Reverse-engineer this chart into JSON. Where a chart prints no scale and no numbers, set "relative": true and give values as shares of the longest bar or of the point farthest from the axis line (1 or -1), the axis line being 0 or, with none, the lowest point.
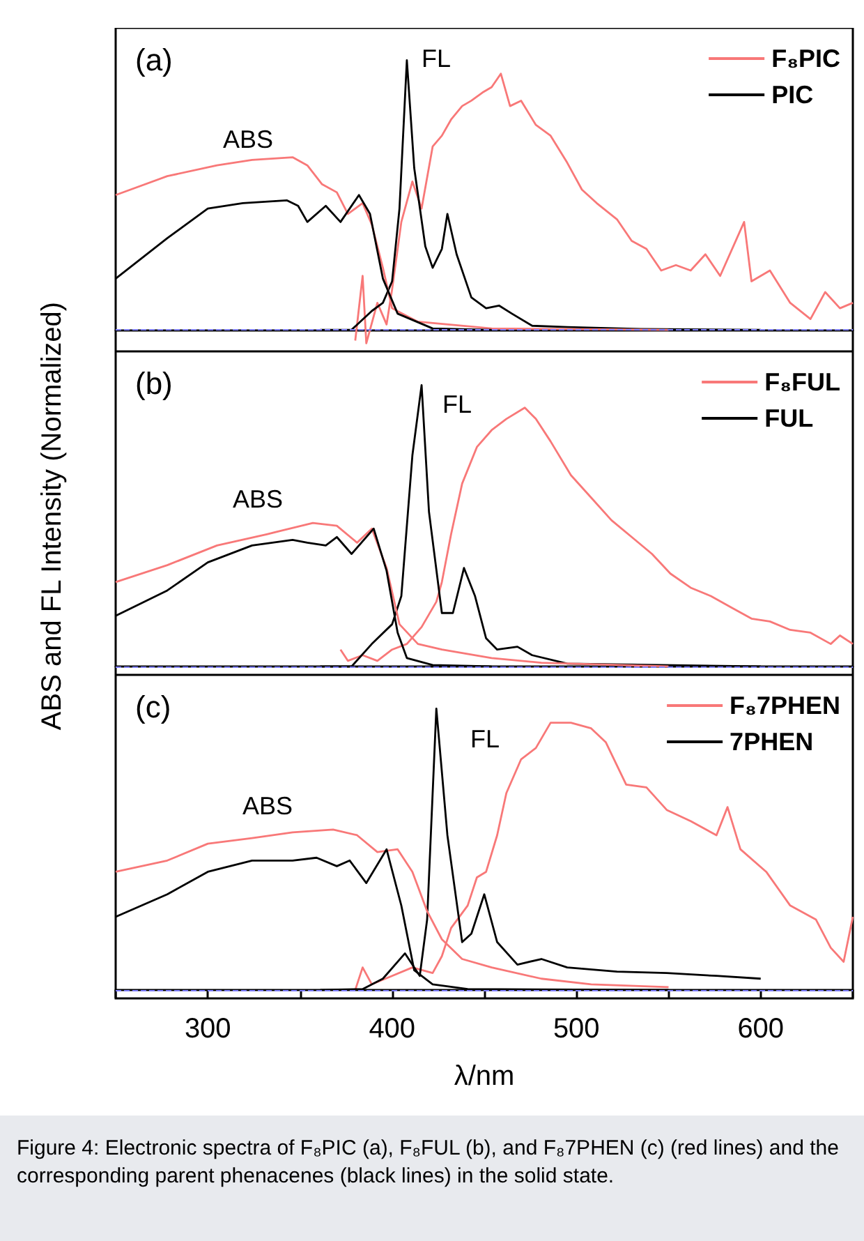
{
  "chart_data": [
    {
      "type": "line",
      "relative": true,
      "tick_labels": false,
      "xlim": [
        250,
        650
      ],
      "legend": "top right",
      "grid": false,
      "annotations": [
        "(a)",
        "ABS",
        "FL"
      ],
      "ref_lines": [
        {
          "axis": "y",
          "value": 0,
          "color": "#8080ff",
          "line_style": "dashed"
        }
      ],
      "series": [
        {
          "name": "F₈PIC",
          "color": "#f87878",
          "x": [
            380,
            384,
            386,
            392,
            397,
            400,
            405,
            411,
            416,
            422,
            427,
            432,
            438,
            443,
            449,
            454,
            459,
            464,
            470,
            478,
            486,
            495,
            503,
            511,
            522,
            530,
            538,
            546,
            554,
            562,
            570,
            578,
            591,
            595,
            605,
            616,
            627,
            635,
            643,
            650
          ],
          "values": [
            -0.04,
            0.2,
            -0.05,
            0.1,
            0.02,
            0.15,
            0.4,
            0.55,
            0.45,
            0.68,
            0.72,
            0.78,
            0.83,
            0.85,
            0.88,
            0.9,
            0.95,
            0.83,
            0.85,
            0.76,
            0.72,
            0.62,
            0.52,
            0.47,
            0.41,
            0.33,
            0.3,
            0.22,
            0.24,
            0.22,
            0.28,
            0.2,
            0.4,
            0.18,
            0.22,
            0.1,
            0.04,
            0.14,
            0.08,
            0.1
          ]
        },
        {
          "name": "PIC",
          "color": "#000000",
          "x": [
            361,
            378,
            389,
            395,
            400,
            404,
            408,
            412,
            418,
            422,
            427,
            430,
            435,
            443,
            451,
            458,
            465,
            476,
            495,
            535,
            600
          ],
          "values": [
            0,
            0,
            0.07,
            0.1,
            0.18,
            0.45,
            1,
            0.6,
            0.31,
            0.23,
            0.3,
            0.43,
            0.28,
            0.12,
            0.08,
            0.09,
            0.06,
            0.015,
            0.01,
            0.003,
            0
          ]
        },
        {
          "color": "#f87878",
          "x": [
            250,
            278,
            305,
            324,
            346,
            354,
            362,
            370,
            376,
            384,
            389,
            395,
            400,
            414,
            454,
            550
          ],
          "values": [
            0.5,
            0.57,
            0.61,
            0.63,
            0.64,
            0.61,
            0.54,
            0.51,
            0.43,
            0.47,
            0.39,
            0.23,
            0.08,
            0.03,
            0.005,
            0
          ]
        },
        {
          "color": "#000000",
          "x": [
            250,
            278,
            300,
            319,
            343,
            349,
            354,
            364,
            372,
            382,
            388,
            395,
            403,
            422,
            454
          ],
          "values": [
            0.19,
            0.34,
            0.45,
            0.47,
            0.48,
            0.46,
            0.4,
            0.46,
            0.4,
            0.5,
            0.43,
            0.19,
            0.06,
            0.005,
            0
          ]
        }
      ]
    },
    {
      "type": "line",
      "relative": true,
      "tick_labels": false,
      "xlim": [
        250,
        650
      ],
      "legend": "top right",
      "grid": false,
      "ylabel": "ABS and FL Intensity (Normalized)",
      "annotations": [
        "(b)",
        "ABS",
        "FL"
      ],
      "ref_lines": [
        {
          "axis": "y",
          "value": 0,
          "color": "#8080ff",
          "line_style": "dashed"
        }
      ],
      "series": [
        {
          "name": "F₈FUL",
          "color": "#f87878",
          "x": [
            372,
            376,
            384,
            392,
            400,
            408,
            416,
            424,
            427,
            432,
            438,
            446,
            454,
            462,
            472,
            478,
            486,
            497,
            508,
            519,
            530,
            541,
            551,
            562,
            573,
            584,
            595,
            605,
            616,
            627,
            638,
            643,
            650
          ],
          "values": [
            0.06,
            0.02,
            0.04,
            0.02,
            0.06,
            0.08,
            0.14,
            0.23,
            0.3,
            0.47,
            0.65,
            0.78,
            0.84,
            0.88,
            0.92,
            0.88,
            0.8,
            0.68,
            0.6,
            0.52,
            0.46,
            0.4,
            0.33,
            0.28,
            0.25,
            0.21,
            0.17,
            0.16,
            0.13,
            0.12,
            0.08,
            0.11,
            0.08
          ]
        },
        {
          "name": "FUL",
          "color": "#000000",
          "x": [
            361,
            378,
            389,
            400,
            405,
            411,
            416,
            420,
            427,
            433,
            439,
            445,
            451,
            457,
            468,
            476,
            495,
            600
          ],
          "values": [
            0,
            0,
            0.08,
            0.15,
            0.25,
            0.75,
            1,
            0.55,
            0.19,
            0.19,
            0.35,
            0.25,
            0.1,
            0.06,
            0.07,
            0.04,
            0.01,
            0
          ]
        },
        {
          "color": "#f87878",
          "x": [
            250,
            278,
            305,
            332,
            357,
            370,
            381,
            389,
            397,
            404,
            414,
            427,
            454,
            481,
            550
          ],
          "values": [
            0.3,
            0.36,
            0.43,
            0.47,
            0.51,
            0.5,
            0.44,
            0.49,
            0.35,
            0.15,
            0.08,
            0.06,
            0.03,
            0.013,
            0
          ]
        },
        {
          "color": "#000000",
          "x": [
            250,
            278,
            300,
            324,
            346,
            354,
            364,
            370,
            378,
            390,
            397,
            403,
            408,
            422,
            454
          ],
          "values": [
            0.18,
            0.27,
            0.37,
            0.43,
            0.45,
            0.44,
            0.43,
            0.46,
            0.4,
            0.49,
            0.34,
            0.12,
            0.03,
            0.005,
            0
          ]
        }
      ]
    },
    {
      "type": "line",
      "relative": true,
      "tick_labels": "x",
      "xlim": [
        250,
        650
      ],
      "legend": "top right",
      "grid": false,
      "xlabel": "λ/nm",
      "xticks": [
        {
          "value": 250,
          "label": null
        },
        300,
        {
          "value": 350,
          "label": null
        },
        400,
        {
          "value": 450,
          "label": null
        },
        500,
        {
          "value": 550,
          "label": null
        },
        600,
        {
          "value": 650,
          "label": null
        }
      ],
      "annotations": [
        "(c)",
        "ABS",
        "FL",
        "Figure 4: Electronic spectra of F₈PIC (a), F₈FUL (b), and F₈7PHEN (c) (red lines) and the corresponding parent phenacenes (black lines) in the solid state."
      ],
      "ref_lines": [
        {
          "axis": "y",
          "value": 0,
          "color": "#8080ff",
          "line_style": "dashed"
        }
      ],
      "series": [
        {
          "name": "F₈7PHEN",
          "color": "#f87878",
          "x": [
            380,
            384,
            389,
            400,
            411,
            422,
            427,
            432,
            441,
            446,
            451,
            457,
            462,
            470,
            478,
            486,
            497,
            508,
            516,
            527,
            538,
            549,
            562,
            576,
            582,
            589,
            603,
            616,
            630,
            638,
            645,
            650
          ],
          "values": [
            0,
            0.08,
            0.02,
            0.05,
            0.08,
            0.06,
            0.12,
            0.22,
            0.3,
            0.4,
            0.42,
            0.55,
            0.7,
            0.82,
            0.86,
            0.95,
            0.95,
            0.93,
            0.88,
            0.73,
            0.72,
            0.64,
            0.6,
            0.55,
            0.65,
            0.5,
            0.42,
            0.3,
            0.25,
            0.15,
            0.1,
            0.26
          ]
        },
        {
          "name": "7PHEN",
          "color": "#000000",
          "x": [
            361,
            384,
            395,
            407,
            415,
            419,
            424,
            430,
            438,
            443,
            450,
            457,
            468,
            481,
            495,
            522,
            549,
            576,
            600
          ],
          "values": [
            0,
            0.003,
            0.04,
            0.13,
            0.05,
            0.25,
            1,
            0.55,
            0.17,
            0.2,
            0.34,
            0.17,
            0.09,
            0.11,
            0.08,
            0.065,
            0.06,
            0.05,
            0.04
          ]
        },
        {
          "color": "#f87878",
          "x": [
            250,
            278,
            300,
            324,
            346,
            368,
            381,
            392,
            403,
            411,
            419,
            427,
            438,
            454,
            481,
            508,
            550
          ],
          "values": [
            0.42,
            0.46,
            0.52,
            0.54,
            0.56,
            0.57,
            0.55,
            0.49,
            0.5,
            0.42,
            0.28,
            0.18,
            0.11,
            0.08,
            0.04,
            0.02,
            0.01
          ]
        },
        {
          "color": "#000000",
          "x": [
            250,
            278,
            300,
            324,
            346,
            359,
            370,
            377,
            386,
            397,
            405,
            412,
            422,
            441,
            550
          ],
          "values": [
            0.26,
            0.34,
            0.42,
            0.46,
            0.46,
            0.47,
            0.44,
            0.46,
            0.38,
            0.5,
            0.3,
            0.07,
            0.02,
            0.003,
            0
          ]
        }
      ]
    }
  ]
}
